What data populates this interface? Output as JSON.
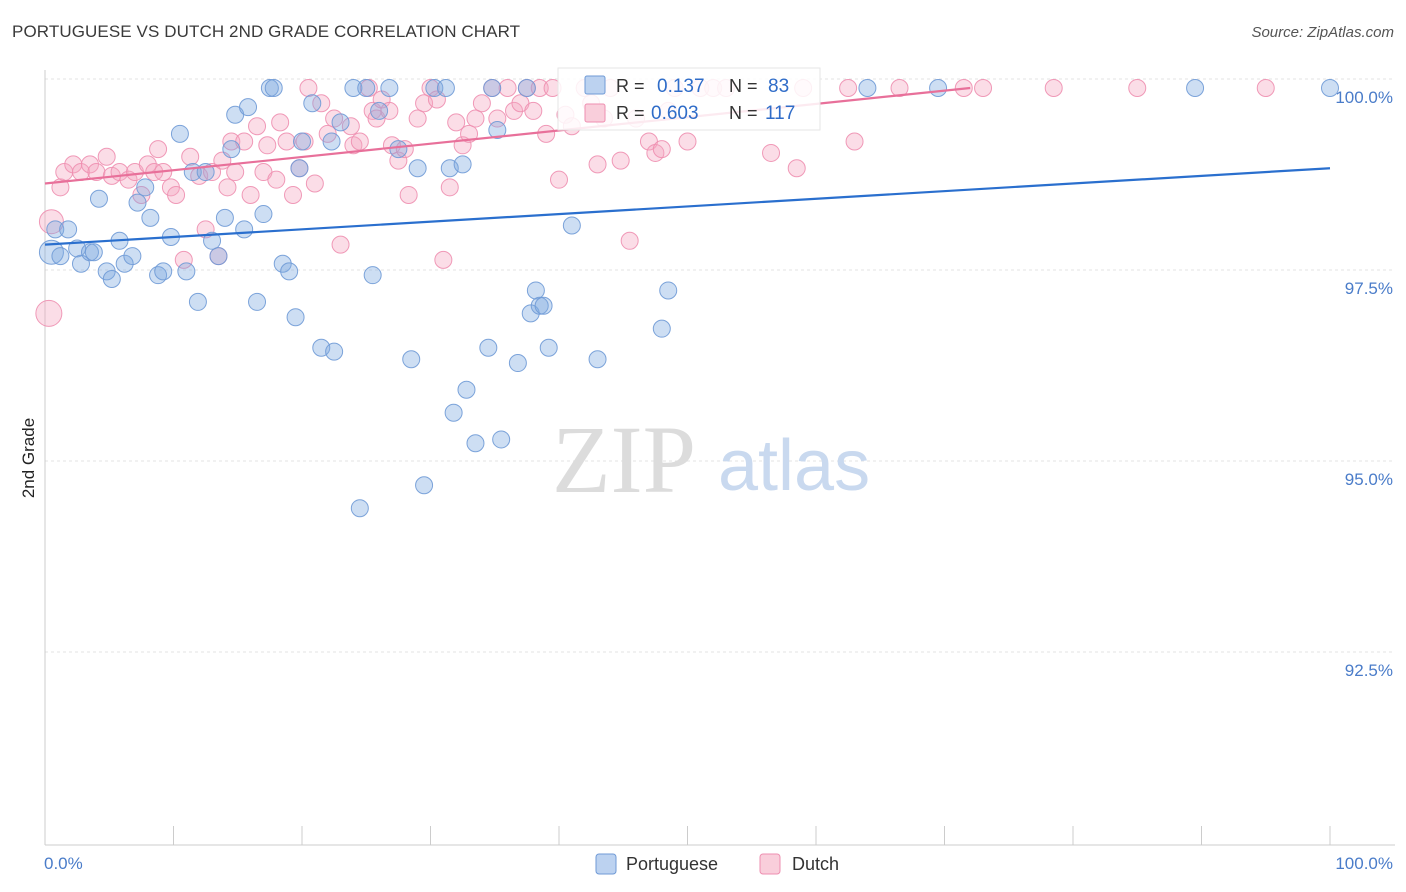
{
  "title": "PORTUGUESE VS DUTCH 2ND GRADE CORRELATION CHART",
  "source": "Source: ZipAtlas.com",
  "watermark": {
    "zip": "ZIP",
    "atlas": "atlas"
  },
  "colors": {
    "portuguese": "#7ba7e0",
    "portuguese_line": "#2a6fce",
    "dutch": "#f4a6bf",
    "dutch_line": "#e8709a"
  },
  "chart_data": {
    "type": "scatter",
    "ylabel": "2nd Grade",
    "xlim": [
      0,
      100
    ],
    "ylim": [
      90.0,
      100.4
    ],
    "x_tick_labels": [
      "0.0%",
      "100.0%"
    ],
    "y_ticks": [
      {
        "value": 100.0,
        "label": "100.0%"
      },
      {
        "value": 97.5,
        "label": "97.5%"
      },
      {
        "value": 95.0,
        "label": "95.0%"
      },
      {
        "value": 92.5,
        "label": "92.5%"
      }
    ],
    "legend_stats": [
      {
        "series": "Portuguese",
        "r_label": "R =",
        "r": "0.137",
        "n_label": "N =",
        "n": "83"
      },
      {
        "series": "Dutch",
        "r_label": "R =",
        "r": "0.603",
        "n_label": "N =",
        "n": "117"
      }
    ],
    "series": [
      {
        "name": "Portuguese",
        "trend": [
          [
            0,
            97.95
          ],
          [
            100,
            98.95
          ]
        ],
        "points": [
          [
            0.5,
            97.85
          ],
          [
            0.8,
            98.15
          ],
          [
            1.2,
            97.8
          ],
          [
            1.8,
            98.15
          ],
          [
            2.5,
            97.9
          ],
          [
            2.8,
            97.7
          ],
          [
            3.5,
            97.85
          ],
          [
            3.8,
            97.85
          ],
          [
            4.2,
            98.55
          ],
          [
            4.8,
            97.6
          ],
          [
            5.2,
            97.5
          ],
          [
            5.8,
            98.0
          ],
          [
            6.2,
            97.7
          ],
          [
            6.8,
            97.8
          ],
          [
            7.2,
            98.5
          ],
          [
            7.8,
            98.7
          ],
          [
            8.2,
            98.3
          ],
          [
            8.8,
            97.55
          ],
          [
            9.2,
            97.6
          ],
          [
            9.8,
            98.05
          ],
          [
            10.5,
            99.4
          ],
          [
            11.0,
            97.6
          ],
          [
            11.5,
            98.9
          ],
          [
            11.9,
            97.2
          ],
          [
            12.5,
            98.9
          ],
          [
            13.0,
            98.0
          ],
          [
            13.5,
            97.8
          ],
          [
            14.0,
            98.3
          ],
          [
            14.5,
            99.2
          ],
          [
            14.8,
            99.65
          ],
          [
            15.5,
            98.15
          ],
          [
            15.8,
            99.75
          ],
          [
            16.5,
            97.2
          ],
          [
            17.0,
            98.35
          ],
          [
            17.5,
            100.0
          ],
          [
            17.8,
            100.0
          ],
          [
            18.5,
            97.7
          ],
          [
            19.0,
            97.6
          ],
          [
            19.5,
            97.0
          ],
          [
            19.8,
            98.95
          ],
          [
            20.0,
            99.3
          ],
          [
            20.8,
            99.8
          ],
          [
            21.5,
            96.6
          ],
          [
            22.3,
            99.3
          ],
          [
            22.5,
            96.55
          ],
          [
            23.0,
            99.55
          ],
          [
            24.0,
            100.0
          ],
          [
            24.5,
            94.5
          ],
          [
            25.0,
            100.0
          ],
          [
            25.5,
            97.55
          ],
          [
            26.0,
            99.7
          ],
          [
            26.8,
            100.0
          ],
          [
            27.5,
            99.2
          ],
          [
            28.5,
            96.45
          ],
          [
            29.0,
            98.95
          ],
          [
            29.5,
            94.8
          ],
          [
            30.3,
            100.0
          ],
          [
            31.2,
            100.0
          ],
          [
            31.5,
            98.95
          ],
          [
            31.8,
            95.75
          ],
          [
            32.5,
            99.0
          ],
          [
            32.8,
            96.05
          ],
          [
            33.5,
            95.35
          ],
          [
            34.5,
            96.6
          ],
          [
            34.8,
            100.0
          ],
          [
            35.2,
            99.45
          ],
          [
            35.5,
            95.4
          ],
          [
            36.8,
            96.4
          ],
          [
            37.5,
            100.0
          ],
          [
            37.8,
            97.05
          ],
          [
            38.2,
            97.35
          ],
          [
            38.5,
            97.15
          ],
          [
            38.8,
            97.15
          ],
          [
            39.2,
            96.6
          ],
          [
            41.0,
            98.2
          ],
          [
            43.0,
            96.45
          ],
          [
            48.0,
            96.85
          ],
          [
            48.5,
            97.35
          ],
          [
            64.0,
            100.0
          ],
          [
            69.5,
            100.0
          ],
          [
            89.5,
            100.0
          ],
          [
            100.0,
            100.0
          ]
        ]
      },
      {
        "name": "Dutch",
        "trend": [
          [
            0,
            98.75
          ],
          [
            72,
            100.0
          ]
        ],
        "points": [
          [
            0.3,
            97.05
          ],
          [
            0.5,
            98.25
          ],
          [
            1.2,
            98.7
          ],
          [
            1.5,
            98.9
          ],
          [
            2.2,
            99.0
          ],
          [
            2.8,
            98.9
          ],
          [
            3.5,
            99.0
          ],
          [
            4.0,
            98.9
          ],
          [
            4.8,
            99.1
          ],
          [
            5.2,
            98.85
          ],
          [
            5.8,
            98.9
          ],
          [
            6.5,
            98.8
          ],
          [
            7.0,
            98.9
          ],
          [
            7.5,
            98.6
          ],
          [
            8.0,
            99.0
          ],
          [
            8.5,
            98.9
          ],
          [
            8.8,
            99.2
          ],
          [
            9.2,
            98.9
          ],
          [
            9.8,
            98.7
          ],
          [
            10.2,
            98.6
          ],
          [
            10.8,
            97.75
          ],
          [
            11.3,
            99.1
          ],
          [
            12.0,
            98.85
          ],
          [
            12.5,
            98.15
          ],
          [
            13.0,
            98.9
          ],
          [
            13.5,
            97.8
          ],
          [
            13.8,
            99.05
          ],
          [
            14.2,
            98.7
          ],
          [
            14.5,
            99.3
          ],
          [
            14.8,
            98.9
          ],
          [
            15.5,
            99.3
          ],
          [
            16.0,
            98.6
          ],
          [
            16.5,
            99.5
          ],
          [
            17.0,
            98.9
          ],
          [
            17.3,
            99.25
          ],
          [
            18.0,
            98.8
          ],
          [
            18.3,
            99.55
          ],
          [
            18.8,
            99.3
          ],
          [
            19.3,
            98.6
          ],
          [
            19.8,
            98.95
          ],
          [
            20.2,
            99.3
          ],
          [
            20.5,
            100.0
          ],
          [
            21.0,
            98.75
          ],
          [
            21.5,
            99.8
          ],
          [
            22.0,
            99.4
          ],
          [
            22.5,
            99.6
          ],
          [
            23.0,
            97.95
          ],
          [
            23.8,
            99.5
          ],
          [
            24.0,
            99.25
          ],
          [
            24.5,
            99.3
          ],
          [
            25.2,
            100.0
          ],
          [
            25.5,
            99.7
          ],
          [
            25.8,
            99.6
          ],
          [
            26.2,
            99.85
          ],
          [
            26.8,
            99.7
          ],
          [
            27.0,
            99.25
          ],
          [
            27.5,
            99.05
          ],
          [
            28.0,
            99.2
          ],
          [
            28.3,
            98.6
          ],
          [
            29.0,
            99.6
          ],
          [
            29.5,
            99.8
          ],
          [
            30.0,
            100.0
          ],
          [
            30.5,
            99.85
          ],
          [
            31.0,
            97.75
          ],
          [
            31.5,
            98.7
          ],
          [
            32.0,
            99.55
          ],
          [
            32.5,
            99.25
          ],
          [
            33.0,
            99.4
          ],
          [
            33.5,
            99.6
          ],
          [
            34.0,
            99.8
          ],
          [
            34.8,
            100.0
          ],
          [
            35.2,
            99.6
          ],
          [
            36.0,
            100.0
          ],
          [
            36.5,
            99.7
          ],
          [
            37.0,
            99.8
          ],
          [
            37.5,
            100.0
          ],
          [
            38.0,
            99.7
          ],
          [
            38.5,
            100.0
          ],
          [
            39.0,
            99.4
          ],
          [
            39.5,
            100.0
          ],
          [
            40.0,
            98.8
          ],
          [
            40.5,
            99.65
          ],
          [
            41.0,
            99.5
          ],
          [
            42.0,
            100.0
          ],
          [
            42.5,
            99.8
          ],
          [
            43.0,
            99.0
          ],
          [
            43.5,
            99.6
          ],
          [
            44.0,
            100.0
          ],
          [
            44.8,
            99.05
          ],
          [
            45.5,
            98.0
          ],
          [
            46.0,
            99.6
          ],
          [
            47.0,
            99.3
          ],
          [
            47.5,
            99.15
          ],
          [
            48.0,
            99.2
          ],
          [
            48.5,
            99.7
          ],
          [
            49.0,
            100.0
          ],
          [
            50.0,
            99.3
          ],
          [
            51.0,
            100.0
          ],
          [
            52.0,
            100.0
          ],
          [
            53.0,
            100.0
          ],
          [
            56.5,
            99.15
          ],
          [
            58.5,
            98.95
          ],
          [
            59.0,
            100.0
          ],
          [
            62.5,
            100.0
          ],
          [
            63.0,
            99.3
          ],
          [
            66.5,
            100.0
          ],
          [
            71.5,
            100.0
          ],
          [
            73.0,
            100.0
          ],
          [
            78.5,
            100.0
          ],
          [
            85.0,
            100.0
          ],
          [
            95.0,
            100.0
          ]
        ]
      }
    ]
  }
}
